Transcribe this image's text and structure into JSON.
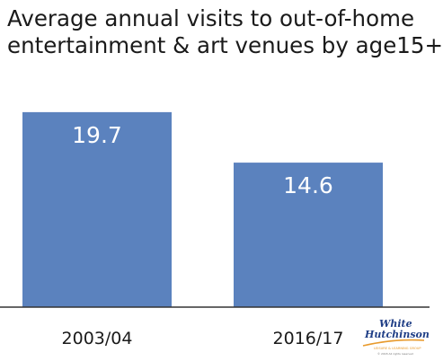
{
  "chart_data": {
    "type": "bar",
    "title_lines": [
      "Average annual visits to out-of-home",
      "entertainment & art venues by age15+"
    ],
    "categories": [
      "2003/04",
      "2016/17"
    ],
    "values": [
      19.7,
      14.6
    ],
    "data_labels": [
      "19.7",
      "14.6"
    ],
    "xlabel": "",
    "ylabel": "",
    "ylim": [
      0,
      23.5
    ],
    "grid": false,
    "legend": "none",
    "bar_color": "#5b82be",
    "label_color": "#ffffff"
  },
  "logo": {
    "line1": "White",
    "line2": "Hutchinson",
    "line3": "LEISURE & LEARNING GROUP",
    "copyright": "© 2018 All rights reserved",
    "color_primary": "#1f3e86",
    "color_accent": "#e89a2c"
  }
}
